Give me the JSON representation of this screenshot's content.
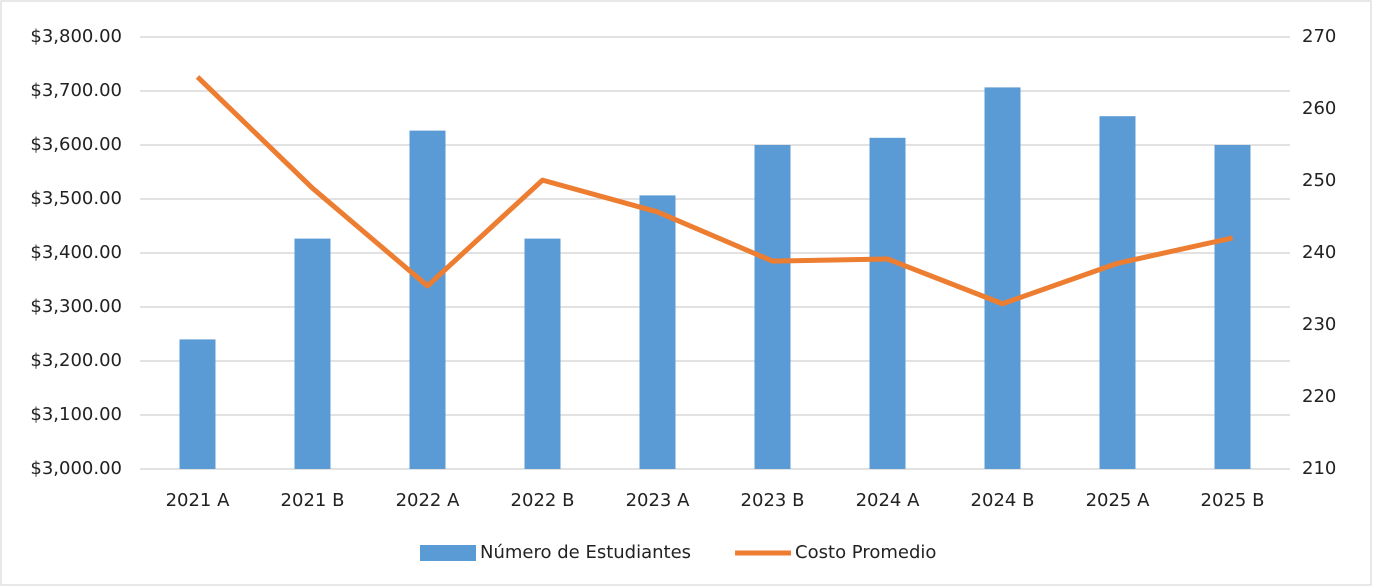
{
  "chart_data": {
    "type": "bar-line",
    "categories": [
      "2021 A",
      "2021 B",
      "2022 A",
      "2022 B",
      "2023 A",
      "2023 B",
      "2024 A",
      "2024 B",
      "2025 A",
      "2025 B"
    ],
    "series": [
      {
        "name": "Número de Estudiantes",
        "type": "bar",
        "axis": "y2",
        "color": "#5b9bd5",
        "values": [
          228,
          242,
          257,
          242,
          248,
          255,
          256,
          263,
          259,
          255
        ]
      },
      {
        "name": "Costo Promedio",
        "type": "line",
        "axis": "y",
        "color": "#ed7d31",
        "values": [
          3726,
          3520,
          3339,
          3535,
          3476,
          3385,
          3389,
          3306,
          3381,
          3428
        ]
      }
    ],
    "ylim": [
      3000,
      3800
    ],
    "yticks": [
      {
        "value": 3000,
        "label": "$3,000.00"
      },
      {
        "value": 3100,
        "label": "$3,100.00"
      },
      {
        "value": 3200,
        "label": "$3,200.00"
      },
      {
        "value": 3300,
        "label": "$3,300.00"
      },
      {
        "value": 3400,
        "label": "$3,400.00"
      },
      {
        "value": 3500,
        "label": "$3,500.00"
      },
      {
        "value": 3600,
        "label": "$3,600.00"
      },
      {
        "value": 3700,
        "label": "$3,700.00"
      },
      {
        "value": 3800,
        "label": "$3,800.00"
      }
    ],
    "y2lim": [
      210,
      270
    ],
    "y2ticks": [
      210,
      220,
      230,
      240,
      250,
      260,
      270
    ],
    "grid": true,
    "legend": "bottom"
  }
}
